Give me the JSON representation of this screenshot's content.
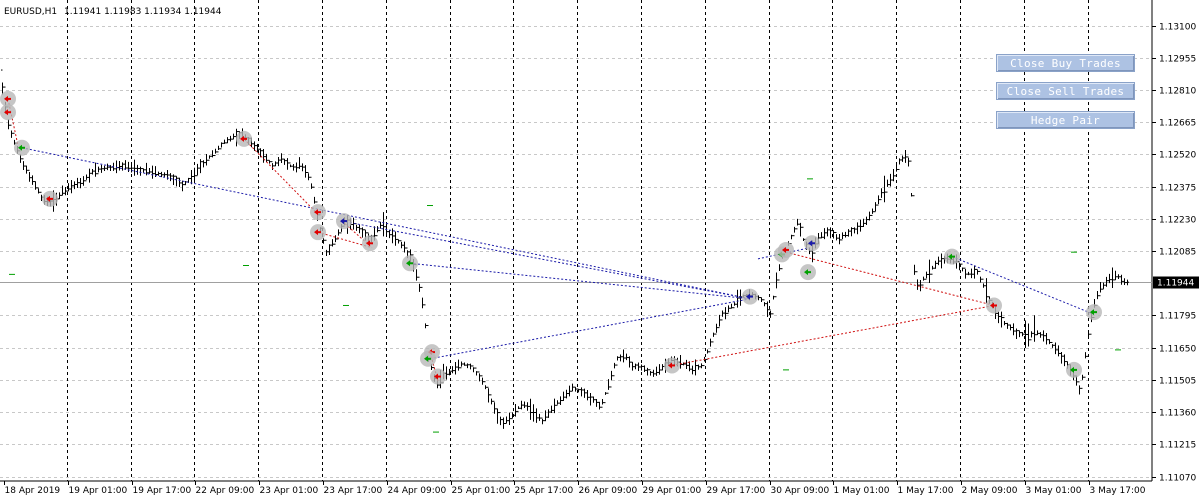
{
  "header": {
    "symbol": "EURUSD,H1",
    "ohlc": "1.11941 1.11983 1.11934 1.11944"
  },
  "buttons": {
    "close_buy": "Close Buy Trades",
    "close_sell": "Close Sell Trades",
    "hedge": "Hedge Pair"
  },
  "chart_data": {
    "type": "bar",
    "symbol": "EURUSD",
    "timeframe": "H1",
    "current_price": 1.11944,
    "current_price_label": "1.11944",
    "ylim": [
      1.1107,
      1.1315
    ],
    "y_ticks": [
      1.131,
      1.12955,
      1.1281,
      1.12665,
      1.1252,
      1.12375,
      1.1223,
      1.12085,
      1.11795,
      1.1165,
      1.11505,
      1.1136,
      1.11215,
      1.1107
    ],
    "y_tick_labels": [
      "1.13100",
      "1.12955",
      "1.12810",
      "1.12665",
      "1.12520",
      "1.12375",
      "1.12230",
      "1.12085",
      "1.11795",
      "1.11650",
      "1.11505",
      "1.11360",
      "1.11215",
      "1.11070"
    ],
    "x_tick_labels": [
      "18 Apr 2019",
      "19 Apr 01:00",
      "19 Apr 17:00",
      "22 Apr 09:00",
      "23 Apr 01:00",
      "23 Apr 17:00",
      "24 Apr 09:00",
      "25 Apr 01:00",
      "25 Apr 17:00",
      "26 Apr 09:00",
      "29 Apr 01:00",
      "29 Apr 17:00",
      "30 Apr 09:00",
      "1 May 01:00",
      "1 May 17:00",
      "2 May 09:00",
      "3 May 01:00",
      "3 May 17:00"
    ],
    "price_path": [
      [
        0,
        1.129
      ],
      [
        3,
        1.1278
      ],
      [
        8,
        1.1265
      ],
      [
        15,
        1.1256
      ],
      [
        22,
        1.1248
      ],
      [
        32,
        1.124
      ],
      [
        42,
        1.1232
      ],
      [
        52,
        1.123
      ],
      [
        62,
        1.1235
      ],
      [
        72,
        1.1238
      ],
      [
        82,
        1.124
      ],
      [
        92,
        1.1244
      ],
      [
        102,
        1.1246
      ],
      [
        112,
        1.1246
      ],
      [
        122,
        1.1247
      ],
      [
        132,
        1.1246
      ],
      [
        142,
        1.1245
      ],
      [
        152,
        1.1244
      ],
      [
        162,
        1.1243
      ],
      [
        172,
        1.1242
      ],
      [
        182,
        1.1238
      ],
      [
        192,
        1.1242
      ],
      [
        202,
        1.1248
      ],
      [
        212,
        1.1252
      ],
      [
        222,
        1.1257
      ],
      [
        232,
        1.126
      ],
      [
        240,
        1.1261
      ],
      [
        250,
        1.1258
      ],
      [
        262,
        1.1252
      ],
      [
        272,
        1.1247
      ],
      [
        282,
        1.125
      ],
      [
        292,
        1.1246
      ],
      [
        300,
        1.1248
      ],
      [
        310,
        1.124
      ],
      [
        318,
        1.1222
      ],
      [
        326,
        1.1208
      ],
      [
        336,
        1.1215
      ],
      [
        344,
        1.1222
      ],
      [
        352,
        1.122
      ],
      [
        360,
        1.1218
      ],
      [
        370,
        1.1214
      ],
      [
        380,
        1.122
      ],
      [
        390,
        1.1216
      ],
      [
        400,
        1.1212
      ],
      [
        410,
        1.1206
      ],
      [
        418,
        1.1195
      ],
      [
        424,
        1.118
      ],
      [
        428,
        1.116
      ],
      [
        432,
        1.1155
      ],
      [
        436,
        1.1148
      ],
      [
        442,
        1.1153
      ],
      [
        452,
        1.1155
      ],
      [
        462,
        1.1158
      ],
      [
        472,
        1.1156
      ],
      [
        482,
        1.115
      ],
      [
        492,
        1.114
      ],
      [
        502,
        1.113
      ],
      [
        512,
        1.1135
      ],
      [
        522,
        1.114
      ],
      [
        532,
        1.1136
      ],
      [
        542,
        1.1132
      ],
      [
        552,
        1.1138
      ],
      [
        562,
        1.1142
      ],
      [
        572,
        1.1147
      ],
      [
        582,
        1.1145
      ],
      [
        592,
        1.1142
      ],
      [
        600,
        1.1138
      ],
      [
        608,
        1.1148
      ],
      [
        616,
        1.116
      ],
      [
        624,
        1.1162
      ],
      [
        632,
        1.1157
      ],
      [
        642,
        1.1156
      ],
      [
        652,
        1.1153
      ],
      [
        662,
        1.1156
      ],
      [
        672,
        1.116
      ],
      [
        682,
        1.1158
      ],
      [
        692,
        1.1155
      ],
      [
        702,
        1.1157
      ],
      [
        712,
        1.117
      ],
      [
        722,
        1.118
      ],
      [
        732,
        1.1184
      ],
      [
        742,
        1.1188
      ],
      [
        752,
        1.1189
      ],
      [
        762,
        1.1186
      ],
      [
        770,
        1.118
      ],
      [
        776,
        1.1195
      ],
      [
        782,
        1.1206
      ],
      [
        790,
        1.1214
      ],
      [
        798,
        1.1222
      ],
      [
        804,
        1.1212
      ],
      [
        810,
        1.1208
      ],
      [
        818,
        1.1214
      ],
      [
        828,
        1.1218
      ],
      [
        838,
        1.1214
      ],
      [
        848,
        1.1217
      ],
      [
        858,
        1.1219
      ],
      [
        866,
        1.1222
      ],
      [
        874,
        1.1228
      ],
      [
        882,
        1.1236
      ],
      [
        892,
        1.1242
      ],
      [
        900,
        1.125
      ],
      [
        906,
        1.1252
      ],
      [
        910,
        1.1245
      ],
      [
        914,
        1.12
      ],
      [
        918,
        1.1192
      ],
      [
        926,
        1.1198
      ],
      [
        936,
        1.1203
      ],
      [
        946,
        1.1205
      ],
      [
        956,
        1.1204
      ],
      [
        966,
        1.1198
      ],
      [
        976,
        1.12
      ],
      [
        986,
        1.119
      ],
      [
        996,
        1.118
      ],
      [
        1006,
        1.1175
      ],
      [
        1016,
        1.1172
      ],
      [
        1026,
        1.117
      ],
      [
        1036,
        1.1172
      ],
      [
        1046,
        1.1169
      ],
      [
        1056,
        1.1164
      ],
      [
        1066,
        1.1158
      ],
      [
        1074,
        1.1152
      ],
      [
        1080,
        1.1145
      ],
      [
        1086,
        1.1165
      ],
      [
        1092,
        1.1182
      ],
      [
        1098,
        1.119
      ],
      [
        1104,
        1.1194
      ],
      [
        1110,
        1.1196
      ],
      [
        1116,
        1.1198
      ],
      [
        1122,
        1.1195
      ],
      [
        1127,
        1.1194
      ]
    ],
    "blue_lines": [
      [
        [
          22,
          1.1255
        ],
        [
          750,
          1.1187
        ]
      ],
      [
        [
          342,
          1.1222
        ],
        [
          750,
          1.1187
        ]
      ],
      [
        [
          410,
          1.1203
        ],
        [
          750,
          1.1187
        ]
      ],
      [
        [
          430,
          1.116
        ],
        [
          750,
          1.1187
        ]
      ],
      [
        [
          758,
          1.1205
        ],
        [
          810,
          1.121
        ]
      ],
      [
        [
          952,
          1.1206
        ],
        [
          1094,
          1.118
        ]
      ]
    ],
    "red_lines": [
      [
        [
          8,
          1.1277
        ],
        [
          18,
          1.1256
        ]
      ],
      [
        [
          244,
          1.1259
        ],
        [
          318,
          1.1225
        ]
      ],
      [
        [
          318,
          1.1217
        ],
        [
          372,
          1.121
        ]
      ],
      [
        [
          342,
          1.1222
        ],
        [
          372,
          1.121
        ]
      ],
      [
        [
          430,
          1.1163
        ],
        [
          438,
          1.115
        ]
      ],
      [
        [
          672,
          1.1157
        ],
        [
          994,
          1.1184
        ]
      ],
      [
        [
          786,
          1.1208
        ],
        [
          994,
          1.1184
        ]
      ]
    ],
    "markers": [
      {
        "x": 8,
        "y": 1.1277,
        "c": "red"
      },
      {
        "x": 8,
        "y": 1.1271,
        "c": "red"
      },
      {
        "x": 22,
        "y": 1.1255,
        "c": "green"
      },
      {
        "x": 50,
        "y": 1.1232,
        "c": "red"
      },
      {
        "x": 244,
        "y": 1.1259,
        "c": "red"
      },
      {
        "x": 318,
        "y": 1.1226,
        "c": "red"
      },
      {
        "x": 318,
        "y": 1.1217,
        "c": "red"
      },
      {
        "x": 344,
        "y": 1.1222,
        "c": "blue"
      },
      {
        "x": 370,
        "y": 1.1212,
        "c": "red"
      },
      {
        "x": 410,
        "y": 1.1203,
        "c": "green"
      },
      {
        "x": 432,
        "y": 1.1163,
        "c": "red"
      },
      {
        "x": 428,
        "y": 1.116,
        "c": "green"
      },
      {
        "x": 438,
        "y": 1.1152,
        "c": "red"
      },
      {
        "x": 672,
        "y": 1.1157,
        "c": "red"
      },
      {
        "x": 750,
        "y": 1.1188,
        "c": "blue"
      },
      {
        "x": 782,
        "y": 1.1207,
        "c": "green"
      },
      {
        "x": 786,
        "y": 1.1209,
        "c": "red"
      },
      {
        "x": 808,
        "y": 1.1199,
        "c": "green"
      },
      {
        "x": 812,
        "y": 1.1212,
        "c": "blue"
      },
      {
        "x": 952,
        "y": 1.1206,
        "c": "green"
      },
      {
        "x": 994,
        "y": 1.1184,
        "c": "red"
      },
      {
        "x": 1074,
        "y": 1.1155,
        "c": "green"
      },
      {
        "x": 1094,
        "y": 1.1181,
        "c": "green"
      }
    ],
    "dashes": [
      {
        "x": 12,
        "y": 1.1198
      },
      {
        "x": 246,
        "y": 1.1202
      },
      {
        "x": 346,
        "y": 1.1184
      },
      {
        "x": 430,
        "y": 1.1229
      },
      {
        "x": 436,
        "y": 1.1127
      },
      {
        "x": 786,
        "y": 1.1155
      },
      {
        "x": 810,
        "y": 1.1241
      },
      {
        "x": 1074,
        "y": 1.1208
      },
      {
        "x": 1118,
        "y": 1.1164
      }
    ],
    "colors": {
      "background": "#ffffff",
      "bars": "#000000",
      "grid": "#c0c0c0",
      "blue_link": "#1a1aa8",
      "red_link": "#d01010",
      "marker_ring": "#b8b8b8",
      "dash": "#00a000"
    }
  }
}
